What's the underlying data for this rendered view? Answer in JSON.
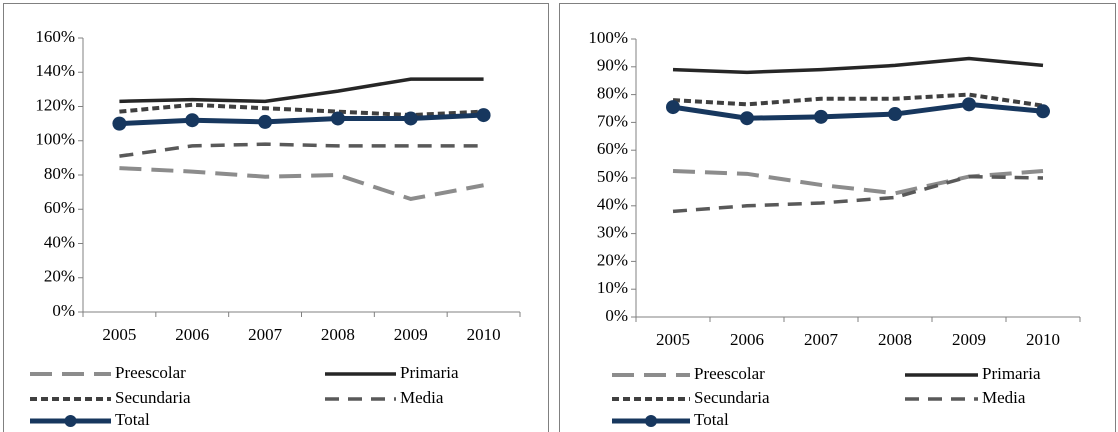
{
  "chart_data": [
    {
      "type": "line",
      "categories": [
        "2005",
        "2006",
        "2007",
        "2008",
        "2009",
        "2010"
      ],
      "ylim": [
        0,
        160
      ],
      "yticks": [
        {
          "value": 0,
          "label": "0%"
        },
        {
          "value": 20,
          "label": "20%"
        },
        {
          "value": 40,
          "label": "40%"
        },
        {
          "value": 60,
          "label": "60%"
        },
        {
          "value": 80,
          "label": "80%"
        },
        {
          "value": 100,
          "label": "100%"
        },
        {
          "value": 120,
          "label": "120%"
        },
        {
          "value": 140,
          "label": "140%"
        },
        {
          "value": 160,
          "label": "160%"
        }
      ],
      "series": [
        {
          "name": "Preescolar",
          "color": "#8c8c8c",
          "values": [
            84,
            82,
            79,
            80,
            66,
            74
          ]
        },
        {
          "name": "Primaria",
          "color": "#262626",
          "values": [
            123,
            124,
            123,
            129,
            136,
            136
          ]
        },
        {
          "name": "Secundaria",
          "color": "#404040",
          "values": [
            117,
            121,
            119,
            117,
            115,
            117
          ]
        },
        {
          "name": "Media",
          "color": "#595959",
          "values": [
            91,
            97,
            98,
            97,
            97,
            97
          ]
        },
        {
          "name": "Total",
          "color": "#17375e",
          "values": [
            110,
            112,
            111,
            113,
            113,
            115
          ]
        }
      ]
    },
    {
      "type": "line",
      "categories": [
        "2005",
        "2006",
        "2007",
        "2008",
        "2009",
        "2010"
      ],
      "ylim": [
        0,
        100
      ],
      "yticks": [
        {
          "value": 0,
          "label": "0%"
        },
        {
          "value": 10,
          "label": "10%"
        },
        {
          "value": 20,
          "label": "20%"
        },
        {
          "value": 30,
          "label": "30%"
        },
        {
          "value": 40,
          "label": "40%"
        },
        {
          "value": 50,
          "label": "50%"
        },
        {
          "value": 60,
          "label": "60%"
        },
        {
          "value": 70,
          "label": "70%"
        },
        {
          "value": 80,
          "label": "80%"
        },
        {
          "value": 90,
          "label": "90%"
        },
        {
          "value": 100,
          "label": "100%"
        }
      ],
      "series": [
        {
          "name": "Preescolar",
          "color": "#8c8c8c",
          "values": [
            52.5,
            51.5,
            47.5,
            44.5,
            50.5,
            52.5
          ]
        },
        {
          "name": "Primaria",
          "color": "#262626",
          "values": [
            89,
            88,
            89,
            90.5,
            93,
            90.5
          ]
        },
        {
          "name": "Secundaria",
          "color": "#404040",
          "values": [
            78,
            76.5,
            78.5,
            78.5,
            80,
            76
          ]
        },
        {
          "name": "Media",
          "color": "#595959",
          "values": [
            38,
            40,
            41,
            43,
            50.5,
            50
          ]
        },
        {
          "name": "Total",
          "color": "#17375e",
          "values": [
            75.5,
            71.5,
            72,
            73,
            76.5,
            74
          ]
        }
      ]
    }
  ]
}
